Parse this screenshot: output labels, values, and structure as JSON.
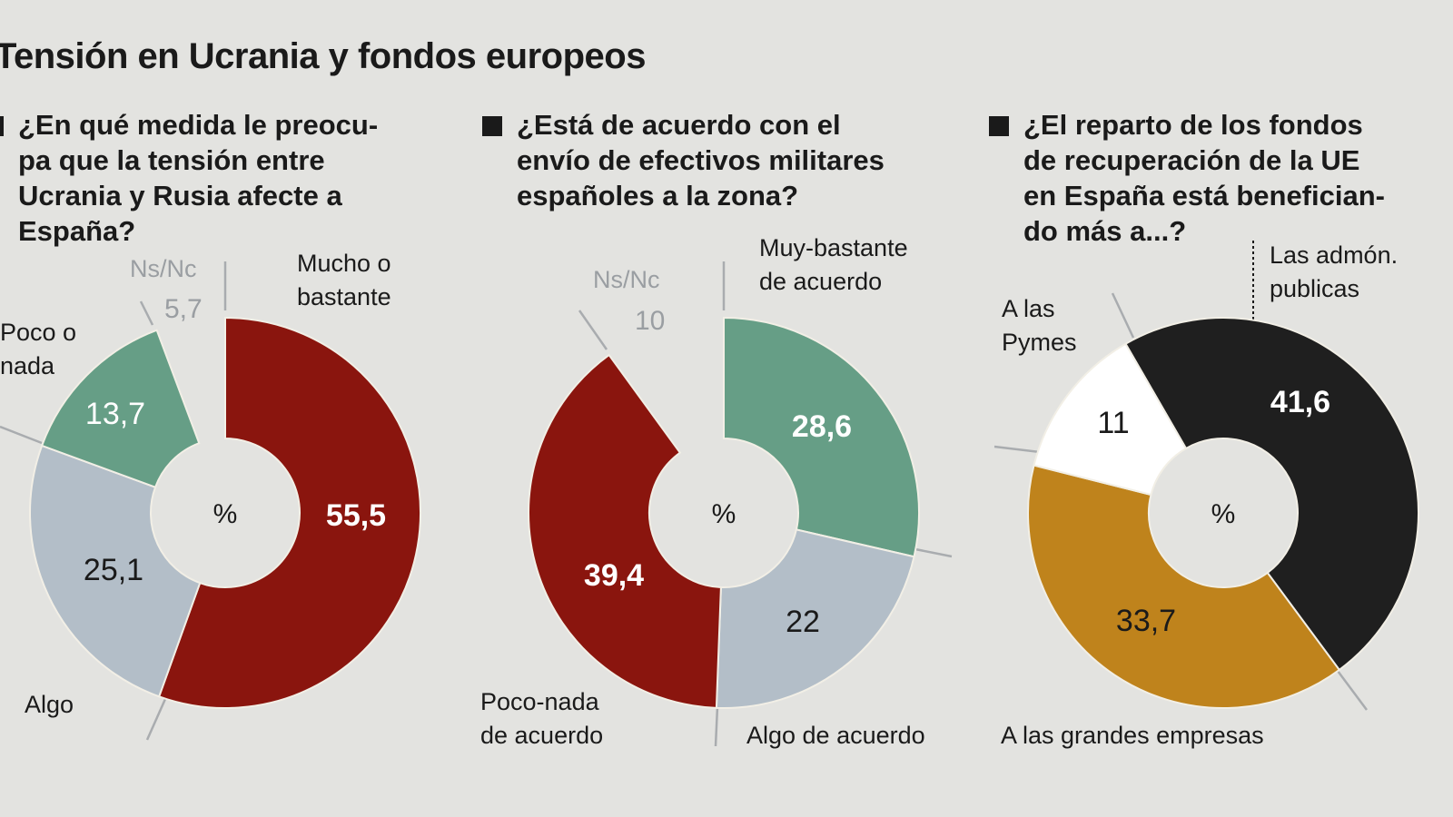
{
  "title": "Tensión en Ucrania y fondos europeos",
  "colors": {
    "background": "#e3e3e0",
    "red": "#8a150e",
    "green": "#669e86",
    "grey": "#b3bec8",
    "gold": "#bf831c",
    "black": "#1f1f1f",
    "white": "#ffffff"
  },
  "chart_data": [
    {
      "type": "pie",
      "donut": true,
      "center_label": "%",
      "question": [
        "¿En qué medida le preocu-",
        "pa que la tensión entre",
        "Ucrania y Rusia afecte a",
        "España?"
      ],
      "slices": [
        {
          "label": "Mucho o bastante",
          "value": 55.5,
          "display": "55,5",
          "color": "#8a150e",
          "text_color": "#ffffff"
        },
        {
          "label": "Algo",
          "value": 25.1,
          "display": "25,1",
          "color": "#b3bec8",
          "text_color": "#1a1a1a"
        },
        {
          "label": "Poco o nada",
          "value": 13.7,
          "display": "13,7",
          "color": "#669e86",
          "text_color": "#ffffff"
        },
        {
          "label": "Ns/Nc",
          "value": 5.7,
          "display": "5,7",
          "color": null,
          "text_color": "#9a9ea2"
        }
      ]
    },
    {
      "type": "pie",
      "donut": true,
      "center_label": "%",
      "question": [
        "¿Está de acuerdo con el",
        "envío de efectivos militares",
        "españoles a la zona?"
      ],
      "slices": [
        {
          "label": "Muy-bastante de acuerdo",
          "value": 28.6,
          "display": "28,6",
          "color": "#669e86",
          "text_color": "#ffffff"
        },
        {
          "label": "Algo de acuerdo",
          "value": 22,
          "display": "22",
          "color": "#b3bec8",
          "text_color": "#1a1a1a"
        },
        {
          "label": "Poco-nada de acuerdo",
          "value": 39.4,
          "display": "39,4",
          "color": "#8a150e",
          "text_color": "#ffffff"
        },
        {
          "label": "Ns/Nc",
          "value": 10,
          "display": "10",
          "color": null,
          "text_color": "#9a9ea2"
        }
      ]
    },
    {
      "type": "pie",
      "donut": true,
      "center_label": "%",
      "question": [
        "¿El reparto de los fondos",
        "de recuperación de la UE",
        "en España está benefician-",
        "do más a...?"
      ],
      "slices": [
        {
          "label": "Las admón. publicas",
          "value": 41.6,
          "display": "41,6",
          "color": "#1f1f1f",
          "text_color": "#ffffff"
        },
        {
          "label": "A las grandes empresas",
          "value": 33.7,
          "display": "33,7",
          "color": "#bf831c",
          "text_color": "#1a1a1a"
        },
        {
          "label": "A las Pymes",
          "value": 11,
          "display": "11",
          "color": "#ffffff",
          "text_color": "#1a1a1a"
        }
      ]
    }
  ]
}
